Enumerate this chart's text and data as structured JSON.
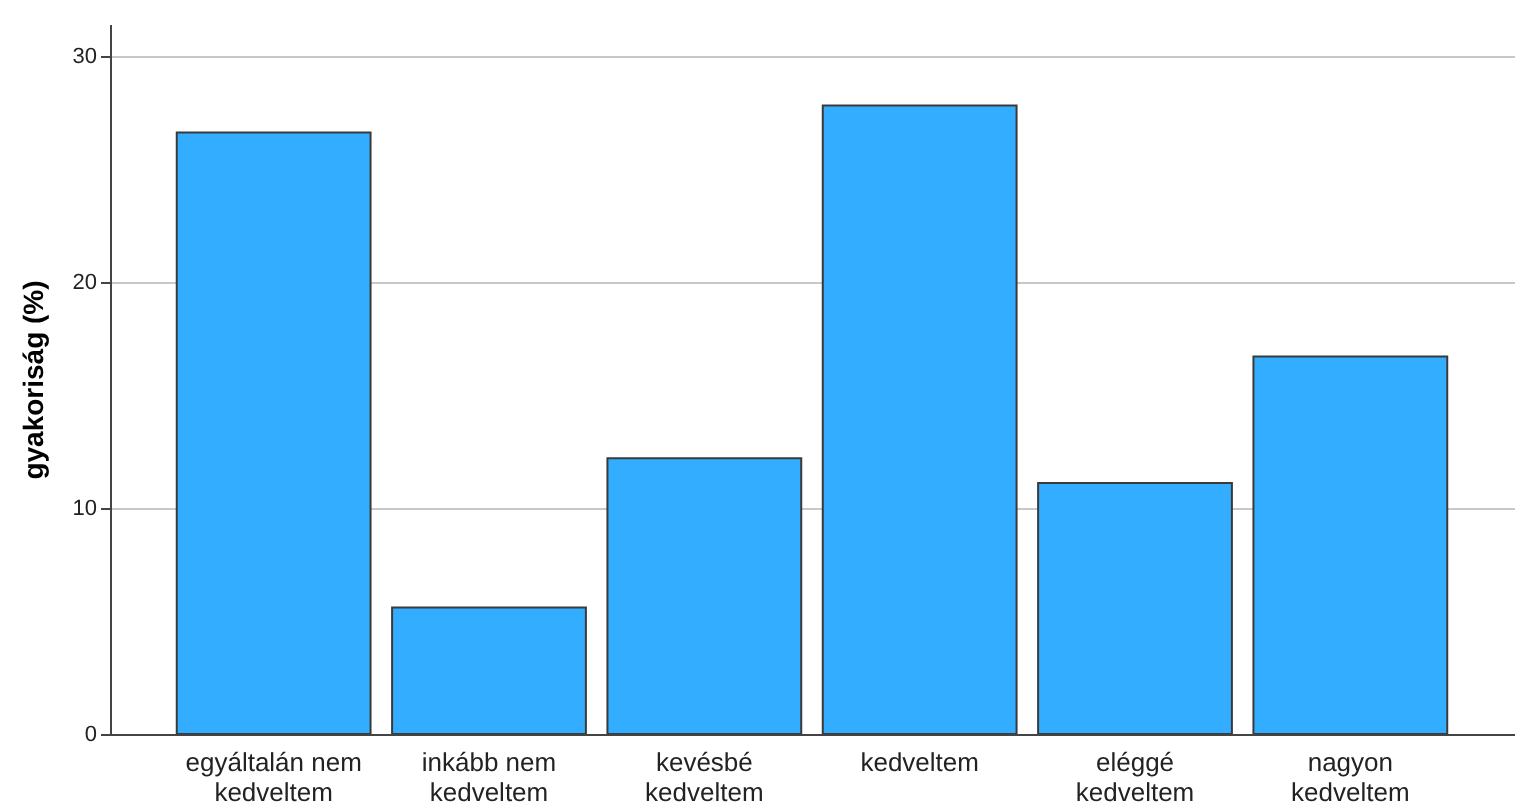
{
  "chart_data": {
    "type": "bar",
    "ylabel": "gyakoriság (%)",
    "categories": [
      "egyáltalán nem kedveltem",
      "inkább nem kedveltem",
      "kevésbé kedveltem",
      "kedveltem",
      "eléggé kedveltem",
      "nagyon kedveltem"
    ],
    "values": [
      26.6,
      5.6,
      12.2,
      27.8,
      11.1,
      16.7
    ],
    "color": "#33adff",
    "ylim": [
      0,
      31.4
    ],
    "yticks": [
      0,
      10,
      20,
      30
    ],
    "grid": "y"
  }
}
